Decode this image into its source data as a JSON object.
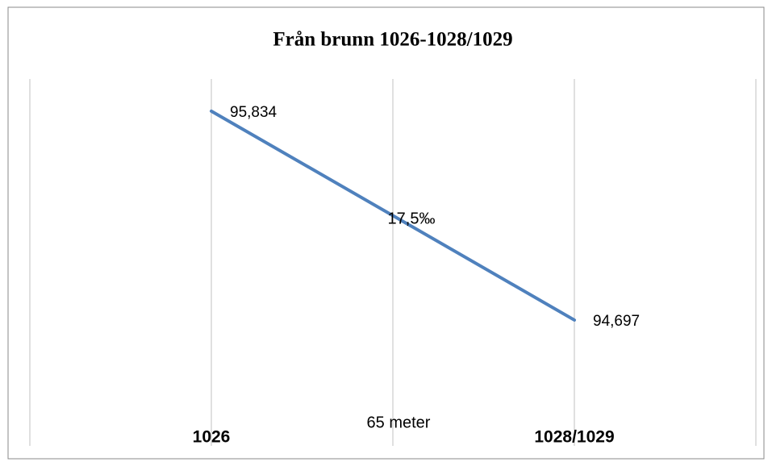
{
  "chart_data": {
    "type": "line",
    "title": "Från brunn 1026-1028/1029",
    "categories": [
      "1026",
      "1028/1029"
    ],
    "series": [
      {
        "name": null,
        "color": "#4f81bd",
        "values": [
          95.834,
          94.697
        ],
        "value_labels": [
          "95,834",
          "94,697"
        ]
      }
    ],
    "ylim": [
      94.1,
      96.0
    ],
    "grid": true,
    "annotations": [
      "17,5‰",
      "65 meter"
    ]
  }
}
